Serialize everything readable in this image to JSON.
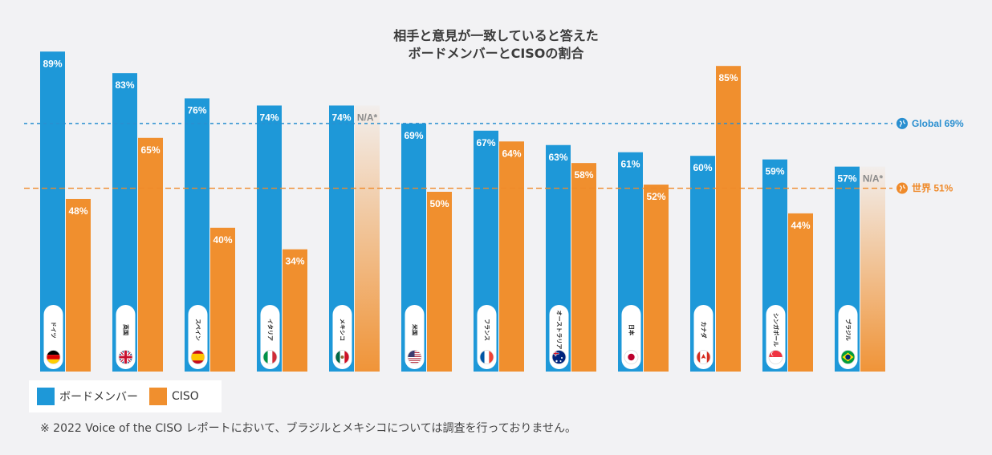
{
  "colors": {
    "board": "#1e98d8",
    "ciso": "#f08f2e",
    "global_line": "#2a8fd0",
    "world_line": "#ef8a2a",
    "background": "#f2f2f4"
  },
  "title": {
    "line1": "相手と意見が一致していると答えた",
    "line2": "ボードメンバーとCISOの割合"
  },
  "legend": {
    "board_label": "ボードメンバー",
    "ciso_label": "CISO"
  },
  "footnote": "※ 2022 Voice of the CISO レポートにおいて、ブラジルとメキシコについては調査を行っておりません。",
  "chart_data": {
    "type": "bar",
    "title": "相手と意見が一致していると答えた ボードメンバーとCISOの割合",
    "ylim": [
      0,
      100
    ],
    "grid": false,
    "categories": [
      "ドイツ",
      "英国",
      "スペイン",
      "イタリア",
      "メキシコ",
      "米国",
      "フランス",
      "オーストラリア",
      "日本",
      "カナダ",
      "シンガポール",
      "ブラジル"
    ],
    "flags": [
      "germany-flag-icon",
      "uk-flag-icon",
      "spain-flag-icon",
      "italy-flag-icon",
      "mexico-flag-icon",
      "usa-flag-icon",
      "france-flag-icon",
      "australia-flag-icon",
      "japan-flag-icon",
      "canada-flag-icon",
      "singapore-flag-icon",
      "brazil-flag-icon"
    ],
    "series": [
      {
        "name": "ボードメンバー",
        "values": [
          89,
          83,
          76,
          74,
          74,
          69,
          67,
          63,
          61,
          60,
          59,
          57
        ],
        "labels": [
          "89%",
          "83%",
          "76%",
          "74%",
          "74%",
          "69%",
          "67%",
          "63%",
          "61%",
          "60%",
          "59%",
          "57%"
        ]
      },
      {
        "name": "CISO",
        "values": [
          48,
          65,
          40,
          34,
          null,
          50,
          64,
          58,
          52,
          85,
          44,
          null
        ],
        "labels": [
          "48%",
          "65%",
          "40%",
          "34%",
          "N/A*",
          "50%",
          "64%",
          "58%",
          "52%",
          "85%",
          "44%",
          "N/A*"
        ]
      }
    ],
    "reference_lines": [
      {
        "name": "Global",
        "value": 69,
        "label": "Global 69%"
      },
      {
        "name": "世界",
        "value": 51,
        "label": "世界 51%"
      }
    ]
  }
}
